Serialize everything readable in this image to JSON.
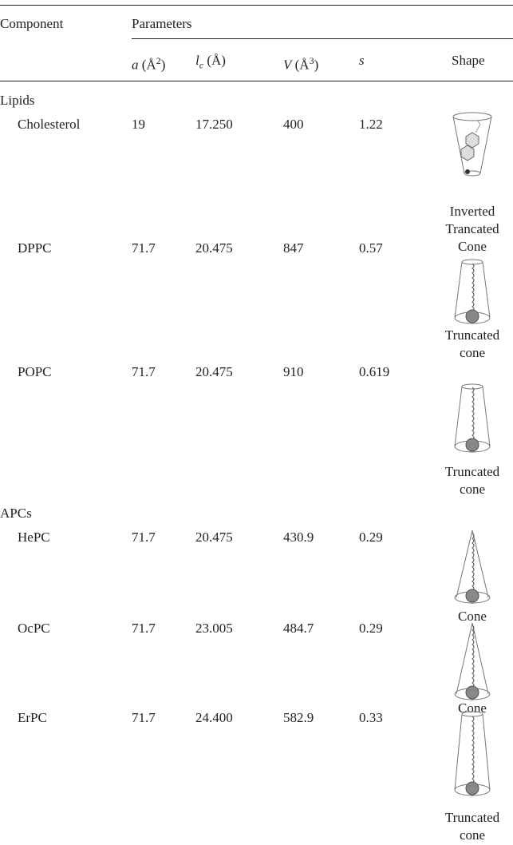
{
  "table": {
    "header": {
      "component": "Component",
      "parameters": "Parameters"
    },
    "columns": [
      {
        "symbol": "a",
        "unit": "(Å",
        "sup": "2",
        "close": ")"
      },
      {
        "symbol": "l",
        "sub": "c",
        "unit": "(Å)"
      },
      {
        "symbol": "V",
        "unit": "(Å",
        "sup": "3",
        "close": ")"
      },
      {
        "symbol": "s"
      },
      {
        "label": "Shape"
      }
    ],
    "groups": [
      {
        "name": "Lipids",
        "rows": [
          {
            "component": "Cholesterol",
            "a": "19",
            "lc": "17.250",
            "V": "400",
            "s": "1.22",
            "shape": "Inverted Trancated Cone"
          },
          {
            "component": "DPPC",
            "a": "71.7",
            "lc": "20.475",
            "V": "847",
            "s": "0.57",
            "shape": "Truncated cone"
          },
          {
            "component": "POPC",
            "a": "71.7",
            "lc": "20.475",
            "V": "910",
            "s": "0.619",
            "shape": "Truncated cone"
          }
        ]
      },
      {
        "name": "APCs",
        "rows": [
          {
            "component": "HePC",
            "a": "71.7",
            "lc": "20.475",
            "V": "430.9",
            "s": "0.29",
            "shape": "Cone"
          },
          {
            "component": "OcPC",
            "a": "71.7",
            "lc": "23.005",
            "V": "484.7",
            "s": "0.29",
            "shape": "Cone"
          },
          {
            "component": "ErPC",
            "a": "71.7",
            "lc": "24.400",
            "V": "582.9",
            "s": "0.33",
            "shape": "Truncated cone"
          }
        ]
      }
    ]
  }
}
